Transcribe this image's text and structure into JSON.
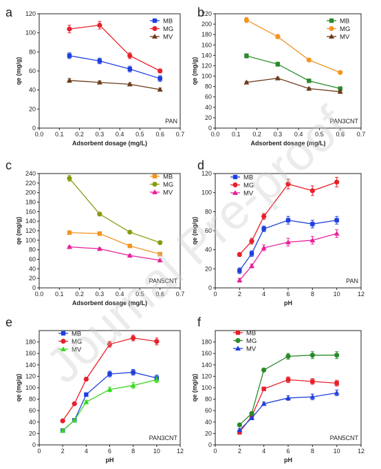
{
  "figure": {
    "watermark": "Journal Pre-proof"
  },
  "chart_data": [
    {
      "panel": "a",
      "type": "line",
      "corner_label": "PAN",
      "xlabel": "Adsorbent dosage (mg/L)",
      "ylabel": "qe (mg/g)",
      "xlim": [
        0.0,
        0.7
      ],
      "ylim": [
        0,
        120
      ],
      "xticks": [
        0.0,
        0.1,
        0.2,
        0.3,
        0.4,
        0.5,
        0.6,
        0.7
      ],
      "yticks": [
        0,
        20,
        40,
        60,
        80,
        100,
        120
      ],
      "x": [
        0.15,
        0.3,
        0.45,
        0.6
      ],
      "series": [
        {
          "name": "MB",
          "color": "#1f3fdc",
          "marker": "square",
          "values": [
            76,
            70.5,
            62,
            52
          ],
          "err": [
            3,
            3,
            3,
            3
          ]
        },
        {
          "name": "MG",
          "color": "#e8202a",
          "marker": "circle",
          "values": [
            104,
            108,
            76,
            60
          ],
          "err": [
            4,
            4,
            3,
            2
          ]
        },
        {
          "name": "MV",
          "color": "#6b3a1a",
          "marker": "triangle",
          "values": [
            50,
            48,
            46,
            40.5
          ],
          "err": [
            2,
            1.5,
            1.5,
            1.5
          ]
        }
      ]
    },
    {
      "panel": "b",
      "type": "line",
      "corner_label": "PAN3CNT",
      "xlabel": "Adsorbent dosage (mg/L)",
      "ylabel": "qe (mg/g)",
      "xlim": [
        0.0,
        0.7
      ],
      "ylim": [
        0,
        220
      ],
      "xticks": [
        0.0,
        0.1,
        0.2,
        0.3,
        0.4,
        0.5,
        0.6,
        0.7
      ],
      "yticks": [
        0,
        20,
        40,
        60,
        80,
        100,
        120,
        140,
        160,
        180,
        200,
        220
      ],
      "x": [
        0.15,
        0.3,
        0.45,
        0.6
      ],
      "series": [
        {
          "name": "MB",
          "color": "#2a8a2a",
          "marker": "square",
          "values": [
            139,
            123,
            91,
            76
          ],
          "err": [
            4,
            4,
            3,
            2
          ]
        },
        {
          "name": "MG",
          "color": "#f39422",
          "marker": "circle",
          "values": [
            208,
            176,
            131,
            107
          ],
          "err": [
            5,
            4,
            3,
            3
          ]
        },
        {
          "name": "MV",
          "color": "#6b3a1a",
          "marker": "triangle",
          "values": [
            88,
            96,
            76,
            70
          ],
          "err": [
            2,
            2,
            2,
            2
          ]
        }
      ]
    },
    {
      "panel": "c",
      "type": "line",
      "corner_label": "PAN5CNT",
      "xlabel": "Adsorbent dosage (mg/L)",
      "ylabel": "qe (mg/g)",
      "xlim": [
        0.0,
        0.7
      ],
      "ylim": [
        0,
        240
      ],
      "xticks": [
        0.0,
        0.1,
        0.2,
        0.3,
        0.4,
        0.5,
        0.6,
        0.7
      ],
      "yticks": [
        0,
        20,
        40,
        60,
        80,
        100,
        120,
        140,
        160,
        180,
        200,
        220,
        240
      ],
      "x": [
        0.15,
        0.3,
        0.45,
        0.6
      ],
      "series": [
        {
          "name": "MB",
          "color": "#f39422",
          "marker": "square",
          "values": [
            116,
            114,
            88,
            71
          ],
          "err": [
            4,
            4,
            3,
            2
          ]
        },
        {
          "name": "MG",
          "color": "#8a9a10",
          "marker": "circle",
          "values": [
            230,
            155,
            117,
            95
          ],
          "err": [
            6,
            4,
            3,
            2
          ]
        },
        {
          "name": "MV",
          "color": "#e8209a",
          "marker": "triangle",
          "values": [
            86,
            82,
            68,
            58
          ],
          "err": [
            2,
            2,
            2,
            2
          ]
        }
      ]
    },
    {
      "panel": "d",
      "type": "line",
      "corner_label": "PAN",
      "xlabel": "pH",
      "ylabel": "qe (mg/g)",
      "xlim": [
        0,
        12
      ],
      "ylim": [
        0,
        120
      ],
      "xticks": [
        0,
        2,
        4,
        6,
        8,
        10,
        12
      ],
      "yticks": [
        0,
        20,
        40,
        60,
        80,
        100,
        120
      ],
      "x": [
        2,
        3,
        4,
        6,
        8,
        10
      ],
      "series": [
        {
          "name": "MB",
          "color": "#1f3fdc",
          "marker": "square",
          "values": [
            18,
            36,
            62,
            71,
            67,
            71
          ],
          "err": [
            3,
            3,
            3,
            4,
            4,
            4
          ]
        },
        {
          "name": "MG",
          "color": "#e8202a",
          "marker": "circle",
          "values": [
            35,
            49,
            75,
            109,
            102,
            111
          ],
          "err": [
            2,
            3,
            3,
            5,
            5,
            5
          ]
        },
        {
          "name": "MV",
          "color": "#e8209a",
          "marker": "triangle",
          "values": [
            8,
            23,
            42,
            48,
            50,
            57
          ],
          "err": [
            2,
            2,
            3,
            4,
            4,
            4
          ]
        }
      ]
    },
    {
      "panel": "e",
      "type": "line",
      "corner_label": "PAN3CNT",
      "xlabel": "pH",
      "ylabel": "qe (mg/g)",
      "xlim": [
        0,
        12
      ],
      "ylim": [
        0,
        200
      ],
      "xticks": [
        0,
        2,
        4,
        6,
        8,
        10,
        12
      ],
      "yticks": [
        0,
        20,
        40,
        60,
        80,
        100,
        120,
        140,
        160,
        180
      ],
      "x": [
        2,
        3,
        4,
        6,
        8,
        10
      ],
      "series": [
        {
          "name": "MB",
          "color": "#1f3fdc",
          "marker": "square",
          "values": [
            25,
            43,
            88,
            124,
            127,
            117
          ],
          "err": [
            2,
            2,
            3,
            5,
            5,
            5
          ]
        },
        {
          "name": "MG",
          "color": "#e8202a",
          "marker": "circle",
          "values": [
            42,
            72,
            115,
            176,
            187,
            181
          ],
          "err": [
            2,
            2,
            3,
            5,
            5,
            6
          ]
        },
        {
          "name": "MV",
          "color": "#39d820",
          "marker": "triangle",
          "values": [
            25,
            43,
            75,
            97,
            104,
            114
          ],
          "err": [
            2,
            2,
            3,
            4,
            5,
            5
          ]
        }
      ]
    },
    {
      "panel": "f",
      "type": "line",
      "corner_label": "PAN5CNT",
      "xlabel": "pH",
      "ylabel": "qe (mg/g)",
      "xlim": [
        0,
        12
      ],
      "ylim": [
        0,
        200
      ],
      "xticks": [
        0,
        2,
        4,
        6,
        8,
        10,
        12
      ],
      "yticks": [
        0,
        20,
        40,
        60,
        80,
        100,
        120,
        140,
        160,
        180
      ],
      "x": [
        2,
        3,
        4,
        6,
        8,
        10
      ],
      "series": [
        {
          "name": "MB",
          "color": "#e8202a",
          "marker": "square",
          "values": [
            22,
            50,
            98,
            114,
            111,
            108
          ],
          "err": [
            2,
            2,
            3,
            5,
            5,
            5
          ]
        },
        {
          "name": "MG",
          "color": "#2a8a2a",
          "marker": "circle",
          "values": [
            35,
            55,
            131,
            155,
            157,
            157
          ],
          "err": [
            2,
            2,
            3,
            5,
            6,
            6
          ]
        },
        {
          "name": "MV",
          "color": "#1f3fdc",
          "marker": "triangle",
          "values": [
            26,
            47,
            72,
            82,
            84,
            91
          ],
          "err": [
            2,
            2,
            3,
            4,
            5,
            5
          ]
        }
      ]
    }
  ]
}
